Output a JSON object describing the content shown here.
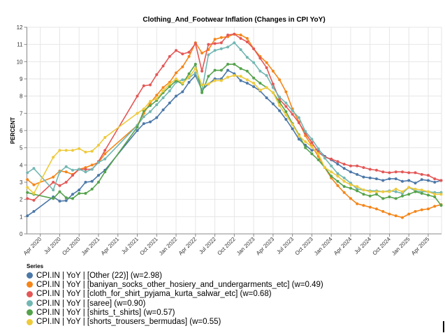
{
  "chart_data": {
    "type": "line",
    "title": "Clothing_And_Footwear Inflation (Changes in CPI YoY)",
    "xlabel": "",
    "ylabel": "PERCENT",
    "ylim": [
      0,
      12
    ],
    "yticks": [
      "0",
      "1",
      "2",
      "3",
      "4",
      "5",
      "6",
      "7",
      "8",
      "9",
      "10",
      "11",
      "12"
    ],
    "xticks": [
      "Apr 2020",
      "Jul 2020",
      "Oct 2020",
      "Jan 2021",
      "Apr 2021",
      "Jul 2021",
      "Oct 2021",
      "Jan 2022",
      "Apr 2022",
      "Jul 2022",
      "Oct 2022",
      "Jan 2023",
      "Apr 2023",
      "Jul 2023",
      "Oct 2023",
      "Jan 2024",
      "Apr 2024",
      "Jul 2024",
      "Oct 2024",
      "Jan 2025",
      "Apr 2025"
    ],
    "grid": true,
    "legend_title": "Series",
    "legend_position": "bottom-left",
    "x": [
      "2020-02",
      "2020-03",
      "2020-06",
      "2020-07",
      "2020-08",
      "2020-09",
      "2020-10",
      "2020-11",
      "2020-12",
      "2021-01",
      "2021-02",
      "2021-07",
      "2021-08",
      "2021-09",
      "2021-10",
      "2021-11",
      "2021-12",
      "2022-01",
      "2022-02",
      "2022-03",
      "2022-04",
      "2022-05",
      "2022-06",
      "2022-07",
      "2022-08",
      "2022-09",
      "2022-10",
      "2022-11",
      "2022-12",
      "2023-01",
      "2023-02",
      "2023-03",
      "2023-04",
      "2023-05",
      "2023-06",
      "2023-07",
      "2023-08",
      "2023-09",
      "2023-10",
      "2023-11",
      "2023-12",
      "2024-01",
      "2024-02",
      "2024-03",
      "2024-04",
      "2024-05",
      "2024-06",
      "2024-07",
      "2024-08",
      "2024-09",
      "2024-10",
      "2024-11",
      "2024-12",
      "2025-01",
      "2025-02",
      "2025-03",
      "2025-04",
      "2025-05",
      "2025-06"
    ],
    "series": [
      {
        "name": "CPI.IN | YoY | [Other (22)] (w=2.98)",
        "color": "#4c78a8",
        "values": [
          1.05,
          1.3,
          2.15,
          1.9,
          1.93,
          2.3,
          2.55,
          3.0,
          3.05,
          3.4,
          3.7,
          6.0,
          6.4,
          6.5,
          6.75,
          7.2,
          7.6,
          8.0,
          8.25,
          8.8,
          9.2,
          8.35,
          8.7,
          9.0,
          9.0,
          9.5,
          9.3,
          8.9,
          8.75,
          8.55,
          8.3,
          7.9,
          7.55,
          7.15,
          6.65,
          6.1,
          5.5,
          5.15,
          4.85,
          4.9,
          4.5,
          4.3,
          4.05,
          3.8,
          3.6,
          3.45,
          3.3,
          3.25,
          3.2,
          3.1,
          3.2,
          3.2,
          3.05,
          3.1,
          2.95,
          3.15,
          3.1,
          3.0,
          3.1
        ]
      },
      {
        "name": "CPI.IN | YoY | [baniyan_socks_other_hosiery_and_undergarments_etc] (w=0.49)",
        "color": "#f58518",
        "values": [
          3.15,
          2.85,
          3.3,
          3.65,
          3.6,
          3.45,
          3.75,
          3.85,
          4.0,
          4.15,
          4.65,
          6.3,
          7.0,
          7.6,
          8.05,
          8.5,
          8.8,
          9.35,
          9.7,
          10.3,
          11.1,
          10.5,
          10.7,
          11.3,
          11.4,
          11.45,
          11.6,
          11.55,
          11.35,
          10.75,
          10.3,
          9.95,
          9.45,
          8.95,
          8.25,
          7.25,
          6.5,
          5.7,
          5.1,
          4.5,
          3.85,
          3.25,
          2.8,
          2.4,
          2.05,
          1.75,
          1.65,
          1.55,
          1.45,
          1.3,
          1.15,
          1.05,
          0.95,
          1.15,
          1.3,
          1.4,
          1.45,
          1.6,
          1.7
        ]
      },
      {
        "name": "CPI.IN | YoY | [cloth_for_shirt_pyjama_kurta_salwar_etc] (w=0.68)",
        "color": "#e45756",
        "values": [
          2.05,
          1.95,
          3.0,
          2.8,
          3.0,
          3.4,
          3.75,
          3.75,
          3.75,
          4.2,
          4.85,
          8.0,
          8.6,
          8.65,
          9.25,
          9.75,
          10.3,
          10.65,
          10.45,
          10.55,
          11.05,
          9.45,
          11.0,
          11.05,
          11.1,
          11.55,
          11.6,
          11.35,
          11.15,
          10.75,
          10.2,
          9.65,
          8.7,
          7.8,
          7.4,
          6.95,
          6.45,
          5.85,
          5.3,
          4.75,
          4.45,
          4.35,
          4.2,
          4.05,
          3.95,
          3.95,
          3.85,
          3.75,
          3.7,
          3.6,
          3.55,
          3.6,
          3.6,
          3.55,
          3.55,
          3.45,
          3.4,
          3.2,
          3.1
        ]
      },
      {
        "name": "CPI.IN | YoY | [saree] (w=0.90)",
        "color": "#72b7b2",
        "values": [
          3.55,
          3.8,
          2.55,
          3.6,
          3.9,
          3.7,
          3.75,
          3.6,
          3.75,
          4.15,
          4.35,
          6.3,
          6.8,
          7.1,
          7.5,
          7.9,
          8.3,
          8.8,
          8.95,
          9.05,
          9.35,
          8.3,
          10.4,
          10.65,
          10.75,
          10.85,
          11.1,
          10.7,
          10.25,
          9.95,
          9.45,
          9.2,
          8.5,
          7.95,
          7.6,
          7.15,
          6.75,
          5.95,
          5.5,
          4.95,
          4.4,
          3.95,
          3.5,
          3.25,
          2.95,
          2.6,
          2.55,
          2.5,
          2.5,
          2.45,
          2.5,
          2.45,
          2.35,
          2.7,
          2.5,
          2.45,
          2.45,
          2.4,
          2.4
        ]
      },
      {
        "name": "CPI.IN | YoY | [shirts_t_shirts] (w=0.57)",
        "color": "#54a24b",
        "values": [
          2.4,
          2.3,
          2.05,
          2.45,
          2.1,
          2.05,
          2.35,
          2.35,
          2.6,
          3.0,
          3.6,
          6.2,
          7.15,
          7.45,
          7.75,
          8.2,
          8.55,
          8.9,
          8.7,
          9.3,
          9.85,
          8.2,
          9.15,
          9.5,
          9.5,
          9.85,
          9.85,
          9.6,
          9.45,
          9.05,
          8.75,
          8.5,
          8.2,
          7.65,
          7.1,
          6.4,
          5.75,
          5.0,
          4.65,
          4.3,
          3.85,
          3.35,
          3.05,
          2.75,
          2.65,
          2.5,
          2.3,
          2.2,
          2.3,
          2.05,
          2.15,
          2.05,
          2.2,
          2.3,
          2.45,
          2.35,
          2.25,
          2.15,
          1.65
        ]
      },
      {
        "name": "CPI.IN | YoY | [shorts_trousers_bermudas] (w=0.55)",
        "color": "#eeca3b",
        "values": [
          2.7,
          2.35,
          4.45,
          4.85,
          4.85,
          4.85,
          4.95,
          4.75,
          4.8,
          5.15,
          5.6,
          7.0,
          7.25,
          7.7,
          7.85,
          8.3,
          8.7,
          9.0,
          8.75,
          9.1,
          9.6,
          8.65,
          8.7,
          8.9,
          8.9,
          9.1,
          9.2,
          9.15,
          8.95,
          8.75,
          8.35,
          8.5,
          8.2,
          7.45,
          6.9,
          6.35,
          5.7,
          5.35,
          5.05,
          4.65,
          3.85,
          3.6,
          3.35,
          3.05,
          2.85,
          2.75,
          2.55,
          2.45,
          2.45,
          2.45,
          2.45,
          2.6,
          2.45,
          2.7,
          2.6,
          2.55,
          2.45,
          2.3,
          2.3
        ]
      }
    ]
  }
}
